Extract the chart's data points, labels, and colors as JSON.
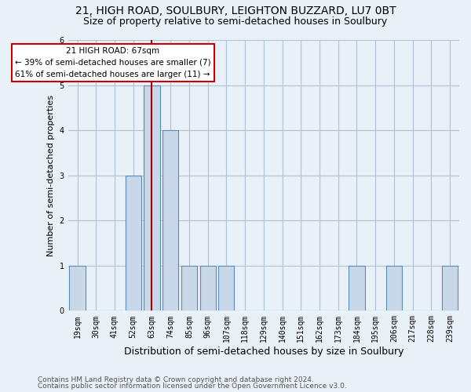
{
  "title1": "21, HIGH ROAD, SOULBURY, LEIGHTON BUZZARD, LU7 0BT",
  "title2": "Size of property relative to semi-detached houses in Soulbury",
  "xlabel": "Distribution of semi-detached houses by size in Soulbury",
  "ylabel": "Number of semi-detached properties",
  "categories": [
    "19sqm",
    "30sqm",
    "41sqm",
    "52sqm",
    "63sqm",
    "74sqm",
    "85sqm",
    "96sqm",
    "107sqm",
    "118sqm",
    "129sqm",
    "140sqm",
    "151sqm",
    "162sqm",
    "173sqm",
    "184sqm",
    "195sqm",
    "206sqm",
    "217sqm",
    "228sqm",
    "239sqm"
  ],
  "values": [
    1,
    0,
    0,
    3,
    5,
    4,
    1,
    1,
    1,
    0,
    0,
    0,
    0,
    0,
    0,
    1,
    0,
    1,
    0,
    0,
    1
  ],
  "bar_color": "#c8d8e8",
  "bar_edge_color": "#5a8ab5",
  "redline_x": 4.0,
  "highlight_line_color": "#aa0000",
  "annotation_text": "21 HIGH ROAD: 67sqm\n← 39% of semi-detached houses are smaller (7)\n61% of semi-detached houses are larger (11) →",
  "annotation_box_color": "white",
  "annotation_box_edge_color": "#cc0000",
  "footer1": "Contains HM Land Registry data © Crown copyright and database right 2024.",
  "footer2": "Contains public sector information licensed under the Open Government Licence v3.0.",
  "ylim": [
    0,
    6
  ],
  "yticks": [
    0,
    1,
    2,
    3,
    4,
    5,
    6
  ],
  "grid_color": "#b0c4d8",
  "bg_color": "#e8f0f8",
  "title1_fontsize": 10,
  "title2_fontsize": 9,
  "tick_fontsize": 7,
  "ylabel_fontsize": 8,
  "xlabel_fontsize": 9,
  "footer_fontsize": 6.5
}
